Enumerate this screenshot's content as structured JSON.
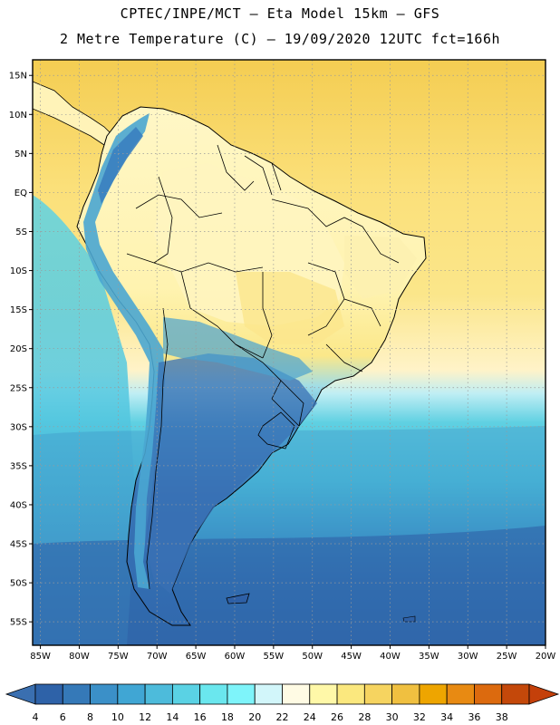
{
  "header": {
    "title_line1": "CPTEC/INPE/MCT –  Eta Model 15km – GFS",
    "title_line2": "2 Metre Temperature (C) – 19/09/2020 12UTC fct=166h"
  },
  "map": {
    "lon_range": [
      -86,
      -20
    ],
    "lat_range": [
      -58,
      17
    ],
    "lat_ticks": [
      {
        "label": "15N",
        "lat": 15
      },
      {
        "label": "10N",
        "lat": 10
      },
      {
        "label": "5N",
        "lat": 5
      },
      {
        "label": "EQ",
        "lat": 0
      },
      {
        "label": "5S",
        "lat": -5
      },
      {
        "label": "10S",
        "lat": -10
      },
      {
        "label": "15S",
        "lat": -15
      },
      {
        "label": "20S",
        "lat": -20
      },
      {
        "label": "25S",
        "lat": -25
      },
      {
        "label": "30S",
        "lat": -30
      },
      {
        "label": "35S",
        "lat": -35
      },
      {
        "label": "40S",
        "lat": -40
      },
      {
        "label": "45S",
        "lat": -45
      },
      {
        "label": "50S",
        "lat": -50
      },
      {
        "label": "55S",
        "lat": -55
      }
    ],
    "lon_ticks": [
      {
        "label": "85W",
        "lon": -85
      },
      {
        "label": "80W",
        "lon": -80
      },
      {
        "label": "75W",
        "lon": -75
      },
      {
        "label": "70W",
        "lon": -70
      },
      {
        "label": "65W",
        "lon": -65
      },
      {
        "label": "60W",
        "lon": -60
      },
      {
        "label": "55W",
        "lon": -55
      },
      {
        "label": "50W",
        "lon": -50
      },
      {
        "label": "45W",
        "lon": -45
      },
      {
        "label": "40W",
        "lon": -40
      },
      {
        "label": "35W",
        "lon": -35
      },
      {
        "label": "30W",
        "lon": -30
      },
      {
        "label": "25W",
        "lon": -25
      },
      {
        "label": "20W",
        "lon": -20
      }
    ]
  },
  "colorbar": {
    "labels": [
      "4",
      "6",
      "8",
      "10",
      "12",
      "14",
      "16",
      "18",
      "20",
      "22",
      "24",
      "26",
      "28",
      "30",
      "32",
      "34",
      "36",
      "38"
    ],
    "low_color": "#3a6fb0",
    "high_color": "#c4400a",
    "colors": [
      "#2e62a8",
      "#3579b8",
      "#3b90c8",
      "#40a6d4",
      "#4dbbdb",
      "#5ad2e4",
      "#6ae7ee",
      "#7ef4fa",
      "#d2f6fa",
      "#fffbe4",
      "#fff8a8",
      "#fbe87e",
      "#f6d460",
      "#f0c040",
      "#eea500",
      "#e88a12",
      "#dc6a0e",
      "#c4480a"
    ]
  },
  "legend_colors": {
    "ocean_cold": "#2e5fa5",
    "ocean_mid": "#3f9ac9",
    "ocean_cyan": "#4cc4df",
    "ocean_light": "#6ad7e6",
    "tropic_light": "#fff6c8",
    "tropic_yellow": "#fbe17a",
    "tropic_warm": "#f6cf58",
    "andes": "#4aa6d2",
    "border": "#000000"
  }
}
